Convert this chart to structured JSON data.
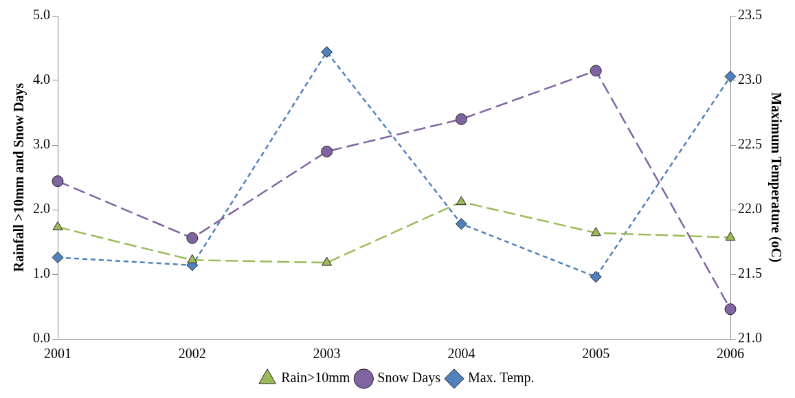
{
  "chart_data": {
    "type": "line",
    "categories": [
      "2001",
      "2002",
      "2003",
      "2004",
      "2005",
      "2006"
    ],
    "ylabel": "Rainfall >10mm and Snow Days",
    "y2label": "Maximum Temperature (oC)",
    "ylim": [
      0,
      5
    ],
    "yticks": [
      {
        "value": 0,
        "label": "0.0"
      },
      {
        "value": 1,
        "label": "1.0"
      },
      {
        "value": 2,
        "label": "2.0"
      },
      {
        "value": 3,
        "label": "3.0"
      },
      {
        "value": 4,
        "label": "4.0"
      },
      {
        "value": 5,
        "label": "5.0"
      }
    ],
    "y2lim": [
      21,
      23.5
    ],
    "y2ticks": [
      {
        "value": 21,
        "label": "21.0"
      },
      {
        "value": 21.5,
        "label": "21.5"
      },
      {
        "value": 22,
        "label": "22.0"
      },
      {
        "value": 22.5,
        "label": "22.5"
      },
      {
        "value": 23,
        "label": "23.0"
      },
      {
        "value": 23.5,
        "label": "23.5"
      }
    ],
    "series": [
      {
        "name": "Rain>10mm",
        "color": "#9bbb59",
        "marker": "triangle",
        "line_style": "dashed",
        "values": [
          1.73,
          1.22,
          1.18,
          2.12,
          1.64,
          1.57
        ]
      },
      {
        "name": "Snow Days",
        "color": "#8064a2",
        "marker": "circle",
        "line_style": "dashed",
        "values": [
          2.44,
          1.56,
          2.9,
          3.4,
          4.15,
          0.46
        ]
      },
      {
        "name": "Max. Temp.",
        "color": "#4f81bd",
        "marker": "diamond",
        "line_style": "dotted",
        "axis": "y2",
        "values": [
          21.63,
          21.57,
          23.22,
          21.89,
          21.48,
          23.03
        ]
      }
    ],
    "grid": false,
    "legend": "bottom"
  }
}
